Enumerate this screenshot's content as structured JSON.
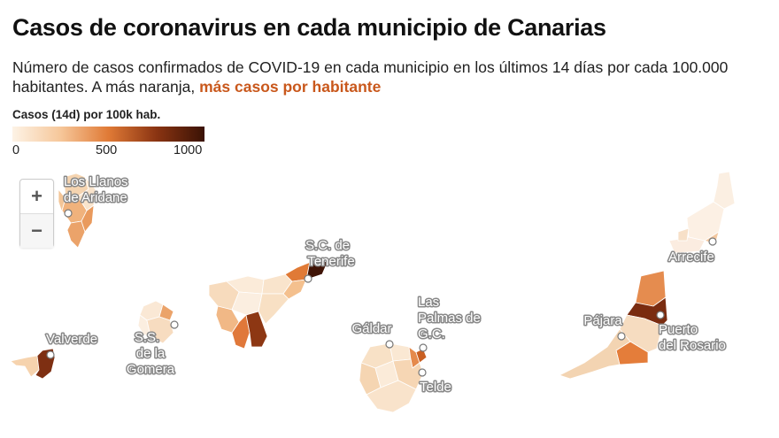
{
  "header": {
    "title": "Casos de coronavirus en cada municipio de Canarias",
    "subtitle_text": "Número de casos confirmados de COVID-19 en cada municipio en los últimos 14 días por cada 100.000 habitantes. A más naranja, ",
    "subtitle_highlight": "más casos por habitante",
    "highlight_color": "#c9581c"
  },
  "legend": {
    "title": "Casos (14d) por 100k hab.",
    "ticks": [
      "0",
      "500",
      "1000"
    ],
    "range": [
      0,
      1000
    ],
    "color_ramp": [
      "#fdf3e6",
      "#f6c79a",
      "#e07a36",
      "#8a3412",
      "#3a1205"
    ]
  },
  "zoom_controls": {
    "zoom_in": "+",
    "zoom_out": "−"
  },
  "places": [
    {
      "id": "los-llanos",
      "label": [
        "Los Llanos",
        "de Aridane"
      ]
    },
    {
      "id": "valverde",
      "label": [
        "Valverde"
      ]
    },
    {
      "id": "ss-gomera",
      "label": [
        "S.S.",
        "de la",
        "Gomera"
      ]
    },
    {
      "id": "sc-tenerife",
      "label": [
        "S.C. de",
        "Tenerife"
      ]
    },
    {
      "id": "galdar",
      "label": [
        "Gáldar"
      ]
    },
    {
      "id": "las-palmas",
      "label": [
        "Las",
        "Palmas de",
        "G.C."
      ]
    },
    {
      "id": "telde",
      "label": [
        "Telde"
      ]
    },
    {
      "id": "arrecife",
      "label": [
        "Arrecife"
      ]
    },
    {
      "id": "pajara",
      "label": [
        "Pájara"
      ]
    },
    {
      "id": "puerto-rosario",
      "label": [
        "Puerto",
        "del Rosario"
      ]
    }
  ]
}
